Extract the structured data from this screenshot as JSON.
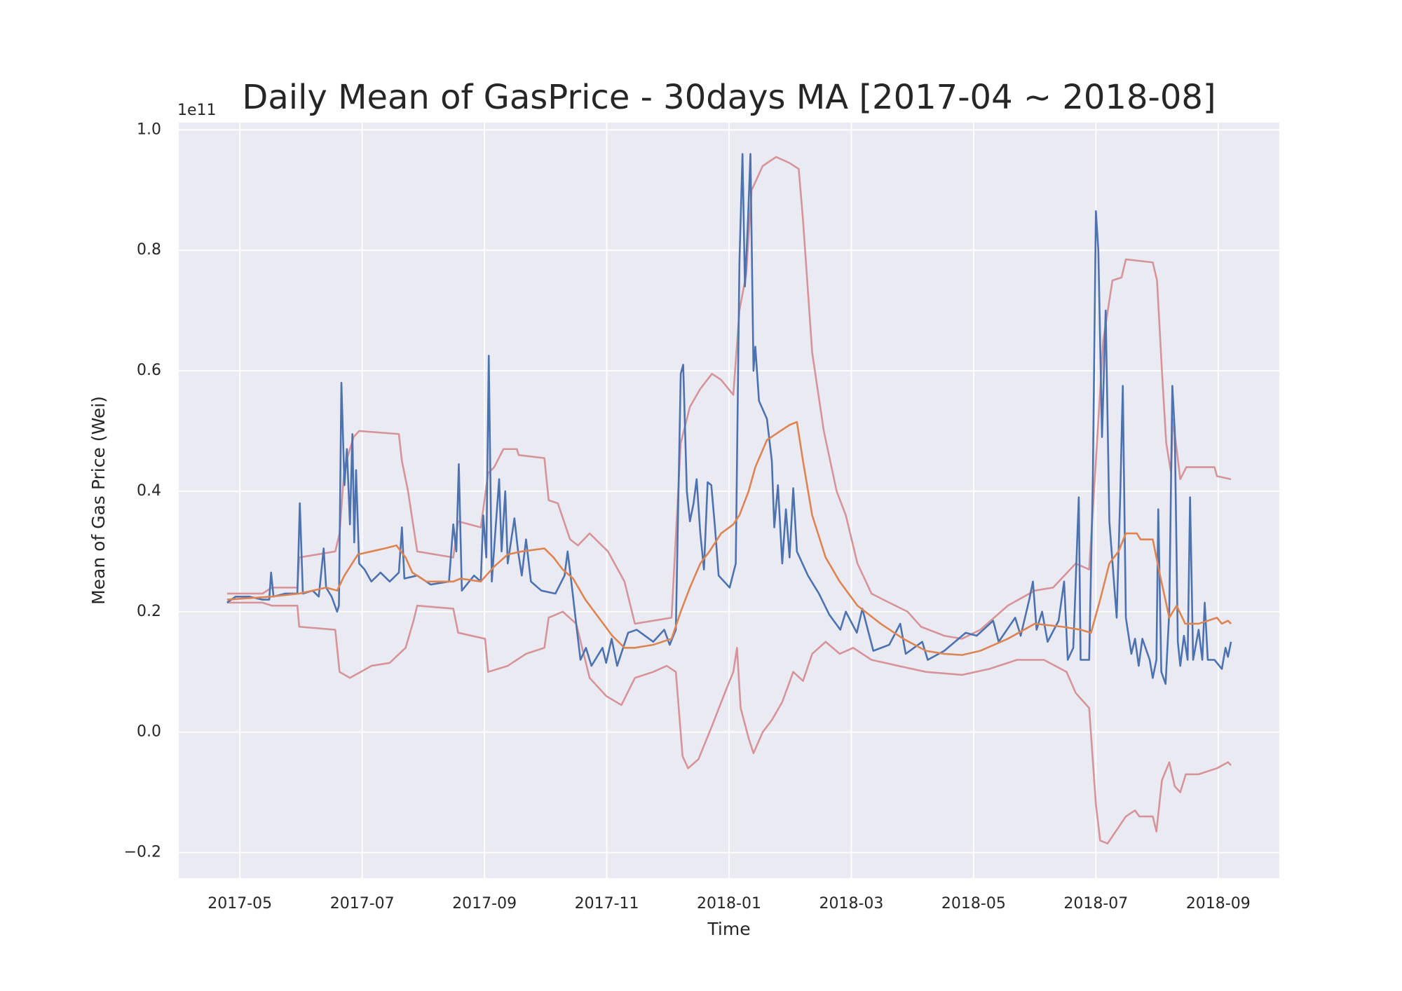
{
  "chart_data": {
    "type": "line",
    "title": "Daily Mean of GasPrice - 30days MA [2017-04 ~ 2018-08]",
    "xlabel": "Time",
    "ylabel": "Mean of Gas Price (Wei)",
    "y_offset_label": "1e11",
    "grid": true,
    "xlim": [
      4.0,
      22.0
    ],
    "ylim": [
      -0.2425,
      1.012
    ],
    "xticks": [
      {
        "value": 5,
        "label": "2017-05"
      },
      {
        "value": 7,
        "label": "2017-07"
      },
      {
        "value": 9,
        "label": "2017-09"
      },
      {
        "value": 11,
        "label": "2017-11"
      },
      {
        "value": 13,
        "label": "2018-01"
      },
      {
        "value": 15,
        "label": "2018-03"
      },
      {
        "value": 17,
        "label": "2018-05"
      },
      {
        "value": 19,
        "label": "2018-07"
      },
      {
        "value": 21,
        "label": "2018-09"
      }
    ],
    "yticks": [
      {
        "value": -0.2,
        "label": "−0.2"
      },
      {
        "value": 0,
        "label": "0.0"
      },
      0.2,
      0.4,
      0.6,
      0.8,
      {
        "value": 1,
        "label": "1.0"
      }
    ],
    "series": [
      {
        "color": "#d6949a",
        "x": [
          4.79,
          5.37,
          5.52,
          5.94,
          5.97,
          6.56,
          6.63,
          6.71,
          6.86,
          6.95,
          7.6,
          7.65,
          7.75,
          7.84,
          7.9,
          8.49,
          8.57,
          8.94,
          9.06,
          9.16,
          9.31,
          9.53,
          9.56,
          9.98,
          10.05,
          10.2,
          10.4,
          10.53,
          10.72,
          11.02,
          11.29,
          11.46,
          12.06,
          12.21,
          12.36,
          12.53,
          12.72,
          12.87,
          13.07,
          13.17,
          13.28,
          13.37,
          13.55,
          13.77,
          13.99,
          14.14,
          14.21,
          14.36,
          14.55,
          14.76,
          14.91,
          15.1,
          15.33,
          15.62,
          15.92,
          16.14,
          16.52,
          16.81,
          17.11,
          17.56,
          18.0,
          18.3,
          18.67,
          18.89,
          19.0,
          19.12,
          19.27,
          19.42,
          19.49,
          19.93,
          20.0,
          20.08,
          20.15,
          20.23,
          20.26,
          20.38,
          20.48,
          20.94,
          20.98,
          21.21
        ],
        "values": [
          0.23,
          0.23,
          0.24,
          0.24,
          0.29,
          0.3,
          0.33,
          0.44,
          0.49,
          0.5,
          0.495,
          0.45,
          0.4,
          0.34,
          0.3,
          0.29,
          0.35,
          0.34,
          0.43,
          0.44,
          0.47,
          0.47,
          0.46,
          0.455,
          0.385,
          0.38,
          0.32,
          0.31,
          0.33,
          0.3,
          0.25,
          0.18,
          0.19,
          0.48,
          0.54,
          0.57,
          0.595,
          0.585,
          0.56,
          0.7,
          0.76,
          0.9,
          0.94,
          0.955,
          0.945,
          0.935,
          0.85,
          0.63,
          0.5,
          0.4,
          0.36,
          0.28,
          0.23,
          0.215,
          0.2,
          0.175,
          0.16,
          0.155,
          0.17,
          0.21,
          0.235,
          0.24,
          0.28,
          0.27,
          0.45,
          0.65,
          0.75,
          0.755,
          0.785,
          0.78,
          0.75,
          0.6,
          0.48,
          0.43,
          0.52,
          0.42,
          0.44,
          0.44,
          0.425,
          0.42
        ]
      },
      {
        "color": "#d6949a",
        "x": [
          4.79,
          5.37,
          5.52,
          5.94,
          5.97,
          6.56,
          6.63,
          6.8,
          7.15,
          7.45,
          7.71,
          7.84,
          7.9,
          8.49,
          8.57,
          9.01,
          9.06,
          9.38,
          9.68,
          9.98,
          10.05,
          10.28,
          10.5,
          10.72,
          10.99,
          11.24,
          11.46,
          11.76,
          11.98,
          12.13,
          12.24,
          12.33,
          12.5,
          12.72,
          12.95,
          13.07,
          13.13,
          13.19,
          13.32,
          13.4,
          13.55,
          13.7,
          13.87,
          14.05,
          14.21,
          14.36,
          14.58,
          14.81,
          15.03,
          15.33,
          15.77,
          16.22,
          16.81,
          17.26,
          17.71,
          18.15,
          18.52,
          18.67,
          18.89,
          19.0,
          19.07,
          19.19,
          19.49,
          19.64,
          19.71,
          19.93,
          19.99,
          20.08,
          20.2,
          20.29,
          20.38,
          20.47,
          20.68,
          20.98,
          21.16,
          21.21
        ],
        "values": [
          0.215,
          0.215,
          0.21,
          0.21,
          0.175,
          0.17,
          0.1,
          0.09,
          0.11,
          0.115,
          0.14,
          0.185,
          0.21,
          0.205,
          0.165,
          0.155,
          0.1,
          0.11,
          0.13,
          0.14,
          0.19,
          0.2,
          0.18,
          0.09,
          0.06,
          0.045,
          0.09,
          0.1,
          0.11,
          0.1,
          -0.04,
          -0.06,
          -0.045,
          0.01,
          0.07,
          0.1,
          0.14,
          0.04,
          -0.01,
          -0.035,
          0.0,
          0.02,
          0.05,
          0.1,
          0.085,
          0.13,
          0.15,
          0.13,
          0.14,
          0.12,
          0.11,
          0.1,
          0.095,
          0.105,
          0.12,
          0.12,
          0.1,
          0.065,
          0.04,
          -0.12,
          -0.18,
          -0.185,
          -0.14,
          -0.13,
          -0.14,
          -0.14,
          -0.165,
          -0.08,
          -0.05,
          -0.09,
          -0.1,
          -0.07,
          -0.07,
          -0.06,
          -0.05,
          -0.055
        ]
      },
      {
        "color": "#4c72b0",
        "x": [
          4.79,
          4.93,
          5.15,
          5.37,
          5.48,
          5.51,
          5.55,
          5.74,
          5.94,
          5.98,
          6.03,
          6.19,
          6.29,
          6.37,
          6.41,
          6.5,
          6.59,
          6.62,
          6.66,
          6.71,
          6.75,
          6.8,
          6.84,
          6.87,
          6.9,
          6.95,
          7.04,
          7.15,
          7.3,
          7.45,
          7.6,
          7.65,
          7.69,
          7.9,
          8.12,
          8.42,
          8.49,
          8.54,
          8.58,
          8.63,
          8.83,
          8.94,
          8.98,
          9.03,
          9.07,
          9.12,
          9.19,
          9.24,
          9.28,
          9.34,
          9.38,
          9.49,
          9.55,
          9.61,
          9.68,
          9.76,
          9.93,
          10.16,
          10.31,
          10.36,
          10.42,
          10.5,
          10.57,
          10.66,
          10.75,
          10.93,
          10.99,
          11.08,
          11.17,
          11.35,
          11.49,
          11.76,
          11.94,
          12.03,
          12.13,
          12.21,
          12.25,
          12.31,
          12.36,
          12.42,
          12.47,
          12.53,
          12.59,
          12.65,
          12.71,
          12.77,
          12.83,
          13.01,
          13.11,
          13.17,
          13.22,
          13.26,
          13.31,
          13.35,
          13.4,
          13.43,
          13.49,
          13.62,
          13.7,
          13.74,
          13.8,
          13.87,
          13.93,
          13.99,
          14.05,
          14.11,
          14.29,
          14.47,
          14.64,
          14.82,
          14.91,
          15.09,
          15.18,
          15.36,
          15.62,
          15.8,
          15.89,
          16.16,
          16.25,
          16.52,
          16.87,
          17.05,
          17.32,
          17.41,
          17.68,
          17.77,
          17.91,
          17.97,
          18.03,
          18.12,
          18.21,
          18.39,
          18.48,
          18.54,
          18.63,
          18.72,
          18.75,
          18.89,
          18.95,
          19.0,
          19.04,
          19.1,
          19.16,
          19.22,
          19.34,
          19.4,
          19.44,
          19.49,
          19.58,
          19.64,
          19.7,
          19.76,
          19.88,
          19.93,
          19.99,
          20.02,
          20.07,
          20.14,
          20.2,
          20.25,
          20.29,
          20.34,
          20.38,
          20.44,
          20.5,
          20.54,
          20.59,
          20.68,
          20.74,
          20.78,
          20.83,
          20.94,
          21.06,
          21.12,
          21.16,
          21.21
        ],
        "values": [
          0.215,
          0.225,
          0.225,
          0.22,
          0.22,
          0.265,
          0.225,
          0.23,
          0.23,
          0.38,
          0.23,
          0.235,
          0.225,
          0.305,
          0.24,
          0.225,
          0.2,
          0.21,
          0.58,
          0.41,
          0.47,
          0.345,
          0.495,
          0.315,
          0.435,
          0.28,
          0.27,
          0.25,
          0.265,
          0.25,
          0.265,
          0.34,
          0.255,
          0.26,
          0.245,
          0.25,
          0.345,
          0.3,
          0.445,
          0.235,
          0.26,
          0.25,
          0.36,
          0.29,
          0.625,
          0.25,
          0.35,
          0.42,
          0.3,
          0.4,
          0.28,
          0.355,
          0.3,
          0.26,
          0.32,
          0.25,
          0.235,
          0.23,
          0.26,
          0.3,
          0.25,
          0.18,
          0.12,
          0.14,
          0.11,
          0.14,
          0.115,
          0.155,
          0.11,
          0.165,
          0.17,
          0.15,
          0.17,
          0.145,
          0.17,
          0.595,
          0.61,
          0.4,
          0.35,
          0.38,
          0.42,
          0.33,
          0.27,
          0.415,
          0.41,
          0.34,
          0.26,
          0.24,
          0.28,
          0.78,
          0.96,
          0.74,
          0.85,
          0.96,
          0.6,
          0.64,
          0.55,
          0.52,
          0.45,
          0.34,
          0.41,
          0.28,
          0.37,
          0.29,
          0.405,
          0.3,
          0.26,
          0.23,
          0.195,
          0.17,
          0.2,
          0.165,
          0.205,
          0.135,
          0.145,
          0.18,
          0.13,
          0.15,
          0.12,
          0.135,
          0.165,
          0.16,
          0.185,
          0.15,
          0.19,
          0.16,
          0.22,
          0.25,
          0.17,
          0.2,
          0.15,
          0.185,
          0.25,
          0.12,
          0.14,
          0.39,
          0.12,
          0.12,
          0.42,
          0.865,
          0.8,
          0.49,
          0.7,
          0.35,
          0.19,
          0.4,
          0.575,
          0.19,
          0.13,
          0.155,
          0.11,
          0.155,
          0.12,
          0.09,
          0.12,
          0.37,
          0.1,
          0.08,
          0.2,
          0.575,
          0.5,
          0.15,
          0.11,
          0.16,
          0.12,
          0.39,
          0.12,
          0.17,
          0.12,
          0.215,
          0.12,
          0.12,
          0.105,
          0.14,
          0.125,
          0.15
        ]
      },
      {
        "color": "#dd8452",
        "x": [
          4.79,
          5.52,
          5.97,
          6.41,
          6.59,
          6.71,
          6.93,
          7.15,
          7.37,
          7.56,
          7.71,
          7.82,
          8.05,
          8.49,
          8.61,
          8.94,
          9.16,
          9.38,
          9.61,
          9.98,
          10.13,
          10.28,
          10.45,
          10.65,
          10.87,
          11.09,
          11.29,
          11.46,
          11.76,
          12.06,
          12.21,
          12.36,
          12.53,
          12.68,
          12.87,
          13.07,
          13.17,
          13.32,
          13.43,
          13.62,
          13.84,
          13.99,
          14.11,
          14.21,
          14.36,
          14.58,
          14.81,
          15.1,
          15.48,
          15.85,
          16.22,
          16.52,
          16.81,
          17.11,
          17.56,
          18.0,
          18.45,
          18.75,
          18.92,
          19.07,
          19.22,
          19.37,
          19.49,
          19.67,
          19.73,
          19.93,
          20.05,
          20.2,
          20.32,
          20.46,
          20.68,
          20.98,
          21.06,
          21.16,
          21.21
        ],
        "values": [
          0.22,
          0.225,
          0.23,
          0.24,
          0.235,
          0.26,
          0.295,
          0.3,
          0.305,
          0.31,
          0.29,
          0.265,
          0.25,
          0.25,
          0.255,
          0.25,
          0.275,
          0.295,
          0.3,
          0.305,
          0.29,
          0.27,
          0.255,
          0.22,
          0.19,
          0.16,
          0.14,
          0.14,
          0.145,
          0.155,
          0.2,
          0.24,
          0.28,
          0.3,
          0.33,
          0.345,
          0.36,
          0.4,
          0.44,
          0.485,
          0.5,
          0.51,
          0.515,
          0.45,
          0.36,
          0.29,
          0.25,
          0.21,
          0.18,
          0.155,
          0.135,
          0.13,
          0.128,
          0.135,
          0.155,
          0.18,
          0.175,
          0.17,
          0.165,
          0.22,
          0.28,
          0.3,
          0.33,
          0.33,
          0.32,
          0.32,
          0.26,
          0.19,
          0.21,
          0.18,
          0.18,
          0.19,
          0.18,
          0.185,
          0.18
        ]
      }
    ]
  }
}
